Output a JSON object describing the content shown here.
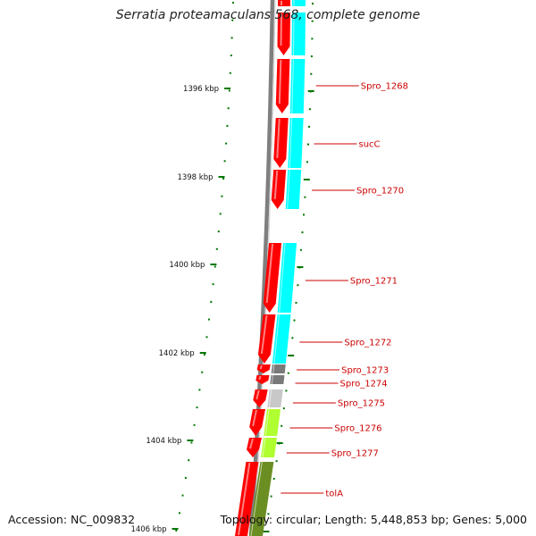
{
  "title": "Serratia proteamaculans 568, complete genome",
  "footer": {
    "accession": "Accession: NC_009832",
    "summary": "Topology: circular; Length: 5,448,853 bp; Genes: 5,000"
  },
  "colors": {
    "forward_cds": "#ff0000",
    "cog_cyan": "#00ffff",
    "cog_gray": "#7a7a7a",
    "cog_lightgray": "#c8c8c8",
    "cog_lime": "#b0ff30",
    "cog_olive": "#6b8e23",
    "backbone": "#7f7f7f",
    "tick": "#007700",
    "label": "#cc0000"
  },
  "ticks": [
    "1396 kbp",
    "1398 kbp",
    "1400 kbp",
    "1402 kbp",
    "1404 kbp",
    "1406 kbp"
  ],
  "genes": [
    {
      "label": "Spro_1268",
      "cog": "cog_cyan"
    },
    {
      "label": "sucC",
      "cog": "cog_cyan"
    },
    {
      "label": "Spro_1270",
      "cog": "cog_cyan"
    },
    {
      "label": "Spro_1271",
      "cog": "cog_cyan"
    },
    {
      "label": "Spro_1272",
      "cog": "cog_cyan"
    },
    {
      "label": "Spro_1273",
      "cog": "cog_gray"
    },
    {
      "label": "Spro_1274",
      "cog": "cog_gray"
    },
    {
      "label": "Spro_1275",
      "cog": "cog_lightgray"
    },
    {
      "label": "Spro_1276",
      "cog": "cog_lime"
    },
    {
      "label": "Spro_1277",
      "cog": "cog_lime"
    },
    {
      "label": "tolA",
      "cog": "cog_olive"
    }
  ]
}
